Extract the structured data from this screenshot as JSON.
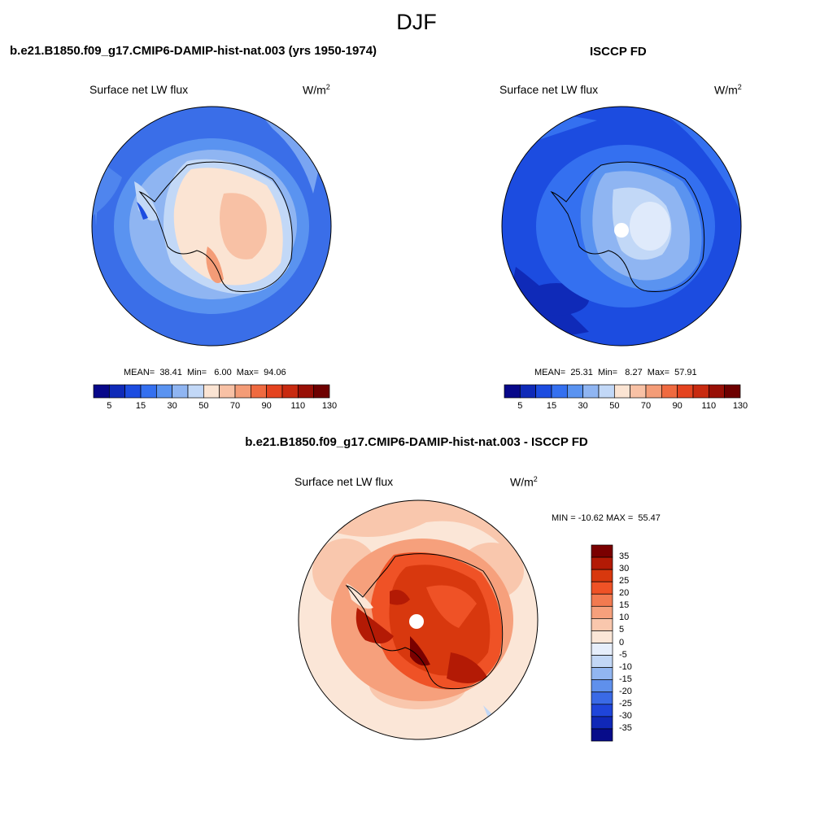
{
  "title": "DJF",
  "panels": [
    {
      "id": "model",
      "case_title": "b.e21.B1850.f09_g17.CMIP6-DAMIP-hist-nat.003 (yrs 1950-1974)",
      "variable": "Surface net LW flux",
      "unit_base": "W/m",
      "unit_exp": "2",
      "stats": "MEAN=  38.41  Min=   6.00  Max=  94.06",
      "mean": 38.41,
      "min": 6.0,
      "max": 94.06
    },
    {
      "id": "obs",
      "case_title": "ISCCP FD",
      "variable": "Surface net LW flux",
      "unit_base": "W/m",
      "unit_exp": "2",
      "stats": "MEAN=  25.31  Min=   8.27  Max=  57.91",
      "mean": 25.31,
      "min": 8.27,
      "max": 57.91
    },
    {
      "id": "diff",
      "case_title": "b.e21.B1850.f09_g17.CMIP6-DAMIP-hist-nat.003 - ISCCP FD",
      "variable": "Surface net LW flux",
      "unit_base": "W/m",
      "unit_exp": "2",
      "stats": "MIN = -10.62 MAX =  55.47",
      "min": -10.62,
      "max": 55.47
    }
  ],
  "colorbar_main": {
    "labels": [
      "5",
      "15",
      "30",
      "50",
      "70",
      "90",
      "110",
      "130"
    ],
    "colors": [
      "#08088a",
      "#0f2ab8",
      "#1c4ce0",
      "#3470f0",
      "#5a93f0",
      "#8fb5f2",
      "#c2d8f7",
      "#fbe4d3",
      "#f8c1a5",
      "#f49c77",
      "#ef6a40",
      "#e4431f",
      "#c82a10",
      "#980f06",
      "#6e0000"
    ]
  },
  "colorbar_diff": {
    "labels": [
      "35",
      "30",
      "25",
      "20",
      "15",
      "10",
      "5",
      "0",
      "-5",
      "-10",
      "-15",
      "-20",
      "-25",
      "-30",
      "-35"
    ],
    "colors": [
      "#7a0000",
      "#b31a05",
      "#d8380e",
      "#ef5226",
      "#f27a50",
      "#f6a07c",
      "#f9c7ad",
      "#fbe6d7",
      "#e6eefb",
      "#c2d7f6",
      "#92b6f1",
      "#5f90ec",
      "#3a6ae6",
      "#1f45da",
      "#1028b8",
      "#070c8a"
    ]
  }
}
